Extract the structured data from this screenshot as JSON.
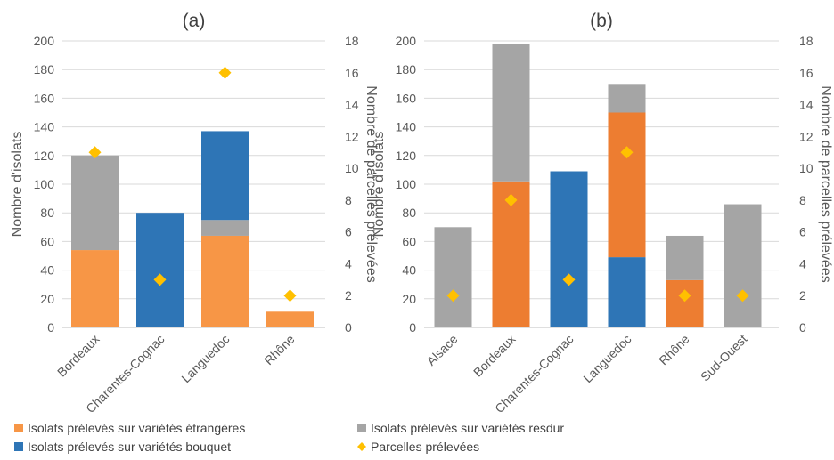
{
  "colors": {
    "etrangeres": "#F79646",
    "etrangeres_b": "#ED7D31",
    "resdur": "#A5A5A5",
    "bouquet": "#2E75B6",
    "parcelles": "#FFC000",
    "grid": "#D9D9D9"
  },
  "legend": [
    {
      "key": "etrangeres",
      "label": "Isolats prélevés sur variétés étrangères",
      "shape": "square"
    },
    {
      "key": "resdur",
      "label": "Isolats prélevés sur variétés resdur",
      "shape": "square"
    },
    {
      "key": "bouquet",
      "label": "Isolats prélevés sur variétés bouquet",
      "shape": "square"
    },
    {
      "key": "parcelles",
      "label": "Parcelles prélevées",
      "shape": "diamond"
    }
  ],
  "chart_data": [
    {
      "type": "bar",
      "title": "(a)",
      "ylabel": "Nombre d'isolats",
      "y2label": "Nombre de parcelles prélevées",
      "ylim": [
        0,
        200
      ],
      "yticks": [
        0,
        20,
        40,
        60,
        80,
        100,
        120,
        140,
        160,
        180,
        200
      ],
      "y2lim": [
        0,
        18
      ],
      "y2ticks": [
        0,
        2,
        4,
        6,
        8,
        10,
        12,
        14,
        16,
        18
      ],
      "grid": true,
      "stacked": true,
      "categories": [
        "Bordeaux",
        "Charentes-Cognac",
        "Languedoc",
        "Rhône"
      ],
      "series": [
        {
          "key": "etrangeres",
          "name": "Isolats prélevés sur variétés étrangères",
          "values": [
            54,
            0,
            64,
            11
          ]
        },
        {
          "key": "resdur",
          "name": "Isolats prélevés sur variétés resdur",
          "values": [
            66,
            0,
            11,
            0
          ]
        },
        {
          "key": "bouquet",
          "name": "Isolats prélevés sur variétés bouquet",
          "values": [
            0,
            80,
            62,
            0
          ]
        },
        {
          "key": "parcelles",
          "name": "Parcelles prélevées",
          "axis": "secondary",
          "marker": "diamond",
          "values": [
            11,
            3,
            16,
            2
          ]
        }
      ]
    },
    {
      "type": "bar",
      "title": "(b)",
      "ylabel": "Nombre d'isolats",
      "y2label": "Nombre de parcelles prélevées",
      "ylim": [
        0,
        200
      ],
      "yticks": [
        0,
        20,
        40,
        60,
        80,
        100,
        120,
        140,
        160,
        180,
        200
      ],
      "y2lim": [
        0,
        18
      ],
      "y2ticks": [
        0,
        2,
        4,
        6,
        8,
        10,
        12,
        14,
        16,
        18
      ],
      "grid": true,
      "stacked": true,
      "categories": [
        "Alsace",
        "Bordeaux",
        "Charentes-Cognac",
        "Languedoc",
        "Rhône",
        "Sud-Ouest"
      ],
      "series": [
        {
          "key": "bouquet",
          "name": "Isolats prélevés sur variétés bouquet",
          "values": [
            0,
            0,
            109,
            49,
            0,
            0
          ]
        },
        {
          "key": "etrangeres_b",
          "name": "Isolats prélevés sur variétés étrangères",
          "values": [
            0,
            102,
            0,
            101,
            33,
            0
          ]
        },
        {
          "key": "resdur",
          "name": "Isolats prélevés sur variétés resdur",
          "values": [
            70,
            96,
            0,
            20,
            31,
            86
          ]
        },
        {
          "key": "parcelles",
          "name": "Parcelles prélevées",
          "axis": "secondary",
          "marker": "diamond",
          "values": [
            2,
            8,
            3,
            11,
            2,
            2
          ]
        }
      ]
    }
  ]
}
